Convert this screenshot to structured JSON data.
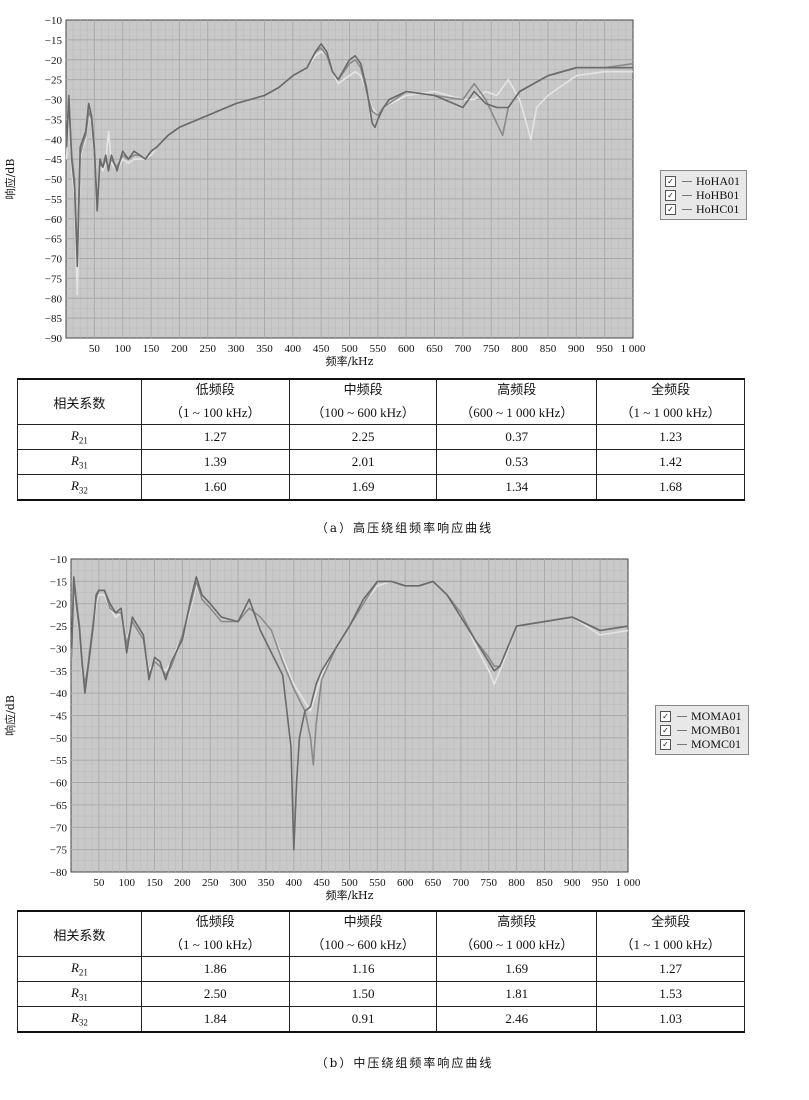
{
  "panels": [
    {
      "id": "a",
      "caption": "（a）高压绕组频率响应曲线",
      "table": {
        "header_label": "相关系数",
        "bands": [
          {
            "name": "低频段",
            "range": "（1 ~ 100 kHz）"
          },
          {
            "name": "中频段",
            "range": "（100 ~ 600 kHz）"
          },
          {
            "name": "高频段",
            "range": "（600 ~ 1 000 kHz）"
          },
          {
            "name": "全频段",
            "range": "（1 ~ 1 000 kHz）"
          }
        ],
        "rows": [
          {
            "label": "R",
            "sub": "21",
            "values": [
              "1.27",
              "2.25",
              "0.37",
              "1.23"
            ]
          },
          {
            "label": "R",
            "sub": "31",
            "values": [
              "1.39",
              "2.01",
              "0.53",
              "1.42"
            ]
          },
          {
            "label": "R",
            "sub": "32",
            "values": [
              "1.60",
              "1.69",
              "1.34",
              "1.68"
            ]
          }
        ]
      }
    },
    {
      "id": "b",
      "caption": "（b）中压绕组频率响应曲线",
      "table": {
        "header_label": "相关系数",
        "bands": [
          {
            "name": "低频段",
            "range": "（1 ~ 100 kHz）"
          },
          {
            "name": "中频段",
            "range": "（100 ~ 600 kHz）"
          },
          {
            "name": "高频段",
            "range": "（600 ~ 1 000 kHz）"
          },
          {
            "name": "全频段",
            "range": "（1 ~ 1 000 kHz）"
          }
        ],
        "rows": [
          {
            "label": "R",
            "sub": "21",
            "values": [
              "1.86",
              "1.16",
              "1.69",
              "1.27"
            ]
          },
          {
            "label": "R",
            "sub": "31",
            "values": [
              "2.50",
              "1.50",
              "1.81",
              "1.53"
            ]
          },
          {
            "label": "R",
            "sub": "32",
            "values": [
              "1.84",
              "0.91",
              "2.46",
              "1.03"
            ]
          }
        ]
      }
    }
  ],
  "chart_data": [
    {
      "type": "line",
      "xlabel": "频率/kHz",
      "ylabel": "响应/dB",
      "xlim": [
        0,
        1000
      ],
      "ylim": [
        -90,
        -10
      ],
      "x_ticks": [
        "50",
        "100",
        "150",
        "200",
        "250",
        "300",
        "350",
        "400",
        "450",
        "500",
        "550",
        "600",
        "650",
        "700",
        "750",
        "800",
        "850",
        "900",
        "950",
        "1 000"
      ],
      "y_ticks": [
        "-10",
        "-15",
        "-20",
        "-25",
        "-30",
        "-35",
        "-40",
        "-45",
        "-50",
        "-55",
        "-60",
        "-65",
        "-70",
        "-75",
        "-80",
        "-85",
        "-90"
      ],
      "grid": true,
      "legend_position": "right",
      "series": [
        {
          "name": "HoHA01",
          "color": "#6a6a6a",
          "x": [
            1,
            5,
            10,
            15,
            20,
            25,
            30,
            35,
            40,
            45,
            50,
            55,
            60,
            65,
            70,
            75,
            80,
            90,
            100,
            110,
            120,
            130,
            140,
            150,
            160,
            180,
            200,
            250,
            300,
            350,
            375,
            400,
            425,
            440,
            450,
            460,
            470,
            480,
            500,
            510,
            520,
            530,
            540,
            545,
            550,
            560,
            570,
            600,
            650,
            700,
            720,
            740,
            760,
            780,
            800,
            850,
            900,
            950,
            1000
          ],
          "y": [
            -42,
            -29,
            -45,
            -52,
            -72,
            -42,
            -40,
            -38,
            -31,
            -34,
            -42,
            -58,
            -45,
            -47,
            -44,
            -48,
            -44,
            -48,
            -43,
            -45,
            -43,
            -44,
            -45,
            -43,
            -42,
            -39,
            -37,
            -34,
            -31,
            -29,
            -27,
            -24,
            -22,
            -18,
            -16,
            -18,
            -23,
            -25,
            -20,
            -19,
            -21,
            -27,
            -36,
            -37,
            -35,
            -32,
            -30,
            -28,
            -29,
            -32,
            -28,
            -31,
            -32,
            -32,
            -28,
            -24,
            -22,
            -22,
            -22
          ]
        },
        {
          "name": "HoHB01",
          "color": "#8a8a8a",
          "x": [
            1,
            5,
            10,
            15,
            20,
            25,
            30,
            35,
            40,
            45,
            50,
            55,
            60,
            65,
            70,
            75,
            80,
            90,
            100,
            110,
            120,
            130,
            140,
            150,
            160,
            180,
            200,
            250,
            300,
            350,
            375,
            400,
            425,
            440,
            450,
            460,
            470,
            480,
            500,
            510,
            520,
            530,
            540,
            550,
            560,
            570,
            600,
            650,
            700,
            720,
            740,
            760,
            770,
            780,
            800,
            850,
            900,
            950,
            1000
          ],
          "y": [
            -40,
            -31,
            -44,
            -50,
            -70,
            -44,
            -41,
            -39,
            -33,
            -35,
            -43,
            -56,
            -46,
            -47,
            -45,
            -47,
            -45,
            -47,
            -44,
            -45,
            -44,
            -44,
            -45,
            -43,
            -42,
            -39,
            -37,
            -34,
            -31,
            -29,
            -27,
            -24,
            -22,
            -18,
            -17,
            -19,
            -23,
            -25,
            -21,
            -20,
            -22,
            -28,
            -33,
            -34,
            -32,
            -31,
            -28,
            -29,
            -30,
            -26,
            -30,
            -36,
            -39,
            -32,
            -28,
            -24,
            -22,
            -22,
            -21
          ]
        },
        {
          "name": "HoHC01",
          "color": "#e4e4e4",
          "x": [
            1,
            5,
            10,
            15,
            20,
            25,
            30,
            35,
            40,
            45,
            50,
            55,
            60,
            65,
            70,
            75,
            80,
            90,
            100,
            110,
            120,
            130,
            140,
            150,
            160,
            180,
            200,
            250,
            300,
            350,
            375,
            400,
            425,
            440,
            450,
            460,
            470,
            480,
            500,
            510,
            520,
            530,
            540,
            550,
            560,
            600,
            650,
            700,
            720,
            740,
            760,
            780,
            800,
            810,
            820,
            830,
            850,
            900,
            950,
            1000
          ],
          "y": [
            -45,
            -33,
            -47,
            -55,
            -79,
            -45,
            -42,
            -40,
            -34,
            -36,
            -44,
            -55,
            -47,
            -48,
            -46,
            -38,
            -46,
            -48,
            -45,
            -46,
            -45,
            -45,
            -45,
            -44,
            -42,
            -39,
            -37,
            -34,
            -31,
            -29,
            -27,
            -24,
            -22,
            -19,
            -18,
            -19,
            -23,
            -26,
            -24,
            -23,
            -24,
            -28,
            -32,
            -34,
            -32,
            -29,
            -28,
            -30,
            -30,
            -28,
            -29,
            -25,
            -30,
            -35,
            -40,
            -32,
            -29,
            -24,
            -23,
            -23
          ]
        }
      ]
    },
    {
      "type": "line",
      "xlabel": "频率/kHz",
      "ylabel": "响应/dB",
      "xlim": [
        0,
        1000
      ],
      "ylim": [
        -80,
        -10
      ],
      "x_ticks": [
        "50",
        "100",
        "150",
        "200",
        "250",
        "300",
        "350",
        "400",
        "450",
        "500",
        "550",
        "600",
        "650",
        "700",
        "750",
        "800",
        "850",
        "900",
        "950",
        "1 000"
      ],
      "y_ticks": [
        "-10",
        "-15",
        "-20",
        "-25",
        "-30",
        "-35",
        "-40",
        "-45",
        "-50",
        "-55",
        "-60",
        "-65",
        "-70",
        "-75",
        "-80"
      ],
      "grid": true,
      "legend_position": "right",
      "series": [
        {
          "name": "MOMA01",
          "color": "#6a6a6a",
          "x": [
            1,
            5,
            10,
            15,
            20,
            25,
            30,
            35,
            40,
            45,
            50,
            60,
            70,
            80,
            90,
            100,
            110,
            120,
            130,
            140,
            150,
            160,
            170,
            180,
            200,
            215,
            225,
            235,
            250,
            270,
            300,
            320,
            340,
            360,
            380,
            395,
            400,
            405,
            410,
            420,
            430,
            440,
            450,
            475,
            500,
            525,
            550,
            575,
            600,
            625,
            650,
            675,
            700,
            725,
            750,
            760,
            770,
            800,
            850,
            900,
            950,
            1000
          ],
          "y": [
            -30,
            -14,
            -20,
            -25,
            -33,
            -40,
            -35,
            -30,
            -25,
            -18,
            -17,
            -17,
            -20,
            -22,
            -21,
            -31,
            -23,
            -25,
            -27,
            -37,
            -32,
            -33,
            -37,
            -33,
            -28,
            -19,
            -14,
            -18,
            -20,
            -23,
            -24,
            -19,
            -26,
            -31,
            -36,
            -52,
            -75,
            -60,
            -50,
            -44,
            -43,
            -38,
            -35,
            -30,
            -25,
            -19,
            -15,
            -15,
            -16,
            -16,
            -15,
            -18,
            -23,
            -28,
            -33,
            -35,
            -34,
            -25,
            -24,
            -23,
            -26,
            -25
          ]
        },
        {
          "name": "MOMB01",
          "color": "#8a8a8a",
          "x": [
            1,
            5,
            10,
            15,
            20,
            25,
            30,
            35,
            40,
            45,
            50,
            60,
            70,
            80,
            90,
            100,
            110,
            120,
            130,
            140,
            150,
            160,
            170,
            180,
            200,
            215,
            225,
            235,
            250,
            270,
            300,
            320,
            340,
            360,
            380,
            400,
            420,
            430,
            435,
            440,
            450,
            475,
            500,
            525,
            550,
            575,
            600,
            625,
            650,
            675,
            700,
            725,
            750,
            760,
            770,
            800,
            850,
            900,
            950,
            1000
          ],
          "y": [
            -32,
            -15,
            -21,
            -26,
            -34,
            -38,
            -34,
            -29,
            -24,
            -19,
            -17,
            -17,
            -21,
            -22,
            -22,
            -29,
            -24,
            -26,
            -28,
            -36,
            -33,
            -34,
            -36,
            -34,
            -27,
            -20,
            -15,
            -19,
            -21,
            -24,
            -24,
            -21,
            -23,
            -26,
            -33,
            -39,
            -44,
            -50,
            -56,
            -47,
            -37,
            -30,
            -25,
            -20,
            -15,
            -15,
            -16,
            -16,
            -15,
            -18,
            -22,
            -28,
            -32,
            -34,
            -34,
            -25,
            -24,
            -23,
            -26,
            -25
          ]
        },
        {
          "name": "MOMC01",
          "color": "#e4e4e4",
          "x": [
            1,
            5,
            10,
            15,
            20,
            25,
            30,
            35,
            40,
            45,
            50,
            60,
            70,
            80,
            90,
            100,
            110,
            120,
            130,
            140,
            150,
            160,
            170,
            180,
            200,
            215,
            225,
            235,
            250,
            270,
            300,
            320,
            340,
            360,
            380,
            400,
            420,
            430,
            440,
            450,
            475,
            500,
            525,
            550,
            575,
            600,
            625,
            650,
            675,
            700,
            725,
            750,
            760,
            770,
            800,
            850,
            900,
            950,
            1000
          ],
          "y": [
            -31,
            -16,
            -22,
            -27,
            -35,
            -37,
            -33,
            -30,
            -25,
            -20,
            -18,
            -18,
            -21,
            -23,
            -22,
            -28,
            -24,
            -26,
            -28,
            -35,
            -33,
            -34,
            -35,
            -33,
            -27,
            -21,
            -16,
            -19,
            -21,
            -24,
            -24,
            -21,
            -23,
            -26,
            -32,
            -38,
            -42,
            -44,
            -40,
            -36,
            -30,
            -25,
            -20,
            -16,
            -15,
            -16,
            -16,
            -15,
            -18,
            -22,
            -29,
            -35,
            -38,
            -35,
            -25,
            -24,
            -23,
            -27,
            -26
          ]
        }
      ]
    }
  ]
}
